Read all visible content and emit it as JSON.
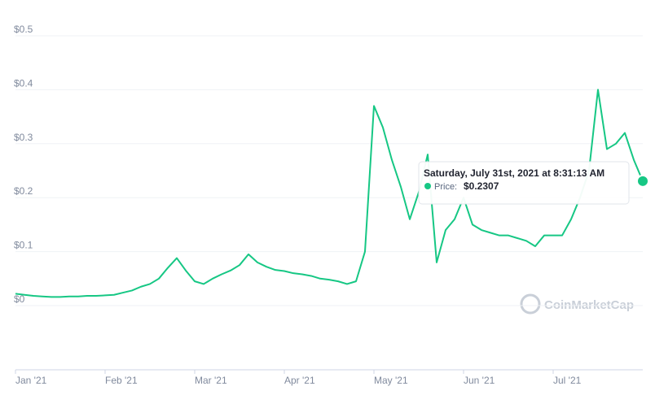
{
  "chart_data": {
    "type": "line",
    "categories": [
      "Jan '21",
      null,
      null,
      null,
      null,
      null,
      null,
      null,
      null,
      null,
      "Feb '21",
      null,
      null,
      null,
      null,
      null,
      null,
      null,
      null,
      null,
      "Mar '21",
      null,
      null,
      null,
      null,
      null,
      null,
      null,
      null,
      null,
      "Apr '21",
      null,
      null,
      null,
      null,
      null,
      null,
      null,
      null,
      null,
      "May '21",
      null,
      null,
      null,
      null,
      null,
      null,
      null,
      null,
      null,
      "Jun '21",
      null,
      null,
      null,
      null,
      null,
      null,
      null,
      null,
      null,
      "Jul '21",
      null,
      null,
      null,
      null,
      null,
      null,
      null,
      null,
      null,
      null
    ],
    "values": [
      0.022,
      0.02,
      0.018,
      0.017,
      0.016,
      0.016,
      0.017,
      0.017,
      0.018,
      0.018,
      0.019,
      0.02,
      0.024,
      0.028,
      0.035,
      0.04,
      0.05,
      0.07,
      0.088,
      0.065,
      0.045,
      0.04,
      0.05,
      0.058,
      0.065,
      0.075,
      0.095,
      0.08,
      0.072,
      0.066,
      0.064,
      0.06,
      0.058,
      0.055,
      0.05,
      0.048,
      0.045,
      0.04,
      0.045,
      0.1,
      0.37,
      0.33,
      0.27,
      0.22,
      0.16,
      0.21,
      0.28,
      0.08,
      0.14,
      0.16,
      0.2,
      0.15,
      0.14,
      0.135,
      0.13,
      0.13,
      0.125,
      0.12,
      0.11,
      0.13,
      0.13,
      0.13,
      0.16,
      0.2,
      0.25,
      0.4,
      0.29,
      0.3,
      0.32,
      0.27,
      0.2307
    ],
    "color": "#16c784",
    "ylim": [
      0,
      0.5
    ],
    "yticks": [
      {
        "value": 0,
        "label": "$0"
      },
      {
        "value": 0.1,
        "label": "$0.1"
      },
      {
        "value": 0.2,
        "label": "$0.2"
      },
      {
        "value": 0.3,
        "label": "$0.3"
      },
      {
        "value": 0.4,
        "label": "$0.4"
      },
      {
        "value": 0.5,
        "label": "$0.5"
      }
    ],
    "grid": true,
    "tooltip": {
      "title": "Saturday, July 31st, 2021 at 8:31:13 AM",
      "label": "Price:",
      "value": "$0.2307"
    },
    "watermark": "CoinMarketCap"
  }
}
